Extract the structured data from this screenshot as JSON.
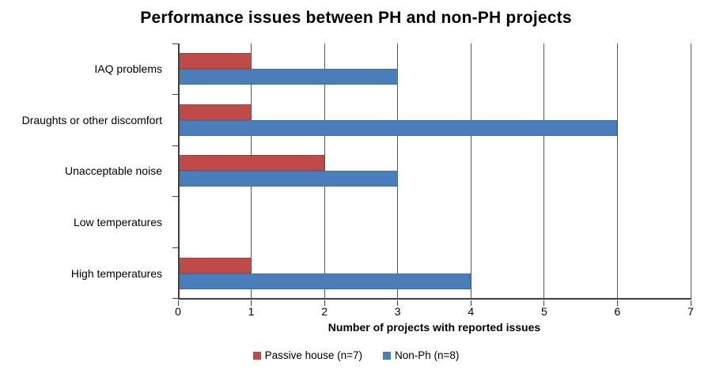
{
  "chart_data": {
    "type": "bar",
    "orientation": "horizontal",
    "title": "Performance issues between PH and non-PH projects",
    "categories": [
      "IAQ problems",
      "Draughts or other discomfort",
      "Unacceptable noise",
      "Low temperatures",
      "High temperatures"
    ],
    "series": [
      {
        "name": "Passive house (n=7)",
        "color": "#be4b48",
        "values": [
          1,
          1,
          2,
          0,
          1
        ]
      },
      {
        "name": "Non-Ph (n=8)",
        "color": "#4a7ebb",
        "values": [
          3,
          6,
          3,
          0,
          4
        ]
      }
    ],
    "xlabel": "Number of projects with reported issues",
    "xlim": [
      0,
      7
    ],
    "xticks": [
      0,
      1,
      2,
      3,
      4,
      5,
      6,
      7
    ],
    "grid": "vertical",
    "legend_position": "bottom"
  },
  "colors": {
    "background": "#ffffff",
    "gridline": "#595959",
    "axis": "#404040",
    "text": "#000000"
  }
}
